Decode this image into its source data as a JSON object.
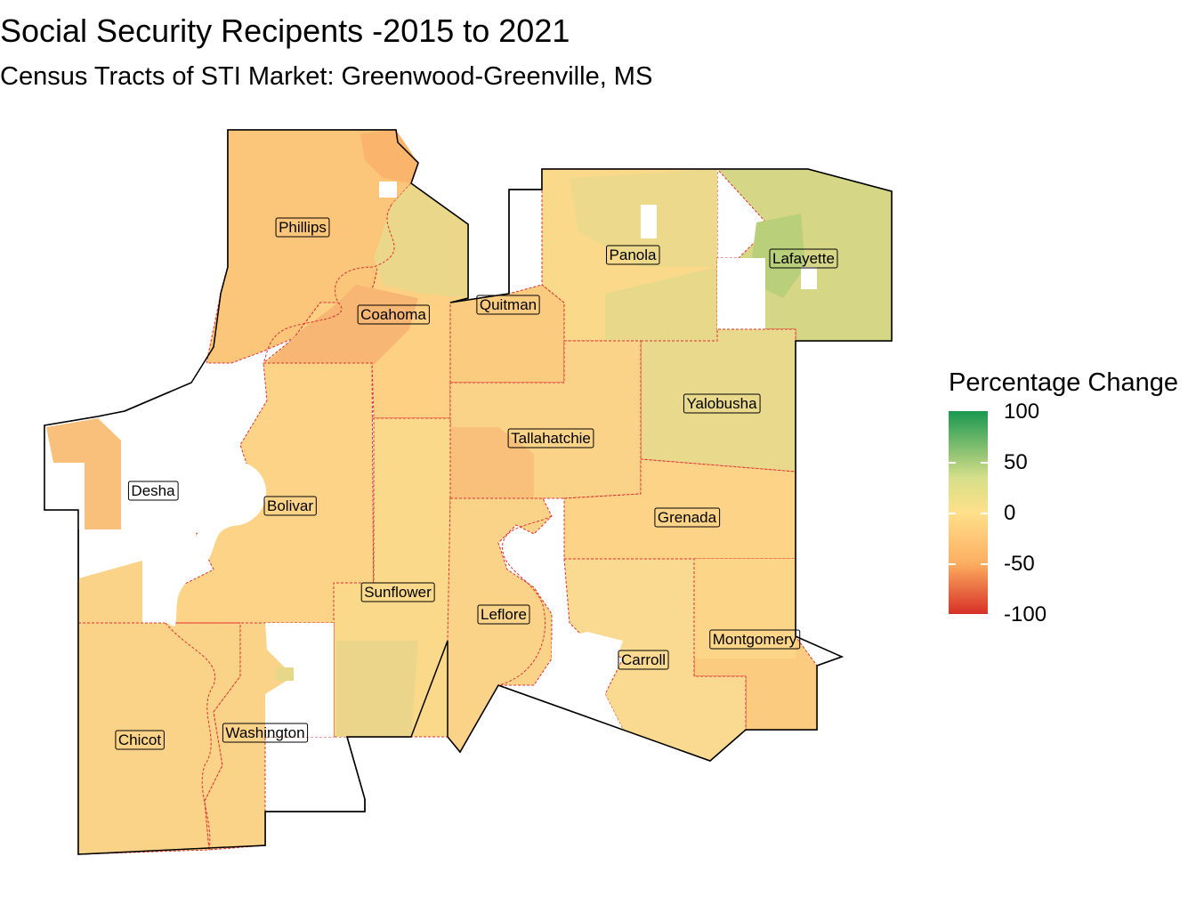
{
  "title": "Social Security Recipents -2015 to 2021",
  "subtitle": "Census Tracts of STI Market: Greenwood-Greenville, MS",
  "legend": {
    "title": "Percentage Change",
    "ticks": [
      "100",
      "50",
      "0",
      "-50",
      "-100"
    ],
    "colors": {
      "high": "#1a9850",
      "mid": "#fee08b",
      "low": "#d73027"
    },
    "range": [
      -100,
      100
    ]
  },
  "counties": [
    {
      "name": "Phillips",
      "value": -30
    },
    {
      "name": "Coahoma",
      "value": -25
    },
    {
      "name": "Quitman",
      "value": -25
    },
    {
      "name": "Panola",
      "value": 5
    },
    {
      "name": "Lafayette",
      "value": 35
    },
    {
      "name": "Yalobusha",
      "value": 15
    },
    {
      "name": "Tallahatchie",
      "value": -10
    },
    {
      "name": "Desha",
      "value": -20
    },
    {
      "name": "Bolivar",
      "value": -15
    },
    {
      "name": "Grenada",
      "value": -10
    },
    {
      "name": "Sunflower",
      "value": 5
    },
    {
      "name": "Leflore",
      "value": -5
    },
    {
      "name": "Montgomery",
      "value": -10
    },
    {
      "name": "Carroll",
      "value": 5
    },
    {
      "name": "Chicot",
      "value": -10
    },
    {
      "name": "Washington",
      "value": -5
    }
  ]
}
